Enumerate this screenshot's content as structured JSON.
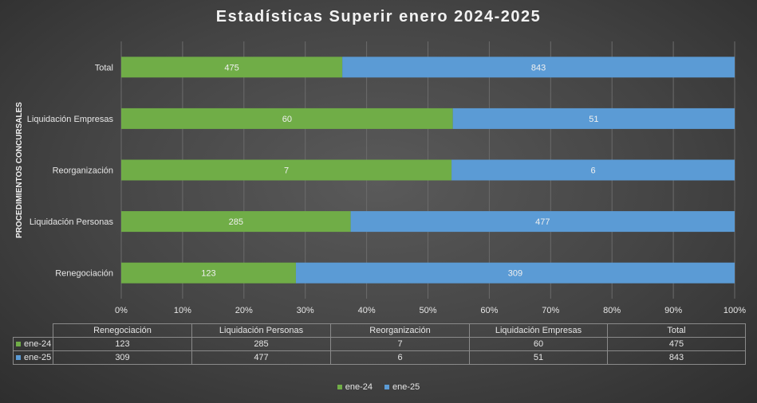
{
  "chart_data": {
    "type": "bar",
    "orientation": "horizontal",
    "stacking": "percent",
    "title": "Estadísticas  Superir  enero 2024-2025",
    "ylabel": "PROCEDIMIENTOS CONCURSALES",
    "categories": [
      "Renegociación",
      "Liquidación Personas",
      "Reorganización",
      "Liquidación Empresas",
      "Total"
    ],
    "series": [
      {
        "name": "ene-24",
        "color": "#70ad47",
        "values": [
          123,
          285,
          7,
          60,
          475
        ]
      },
      {
        "name": "ene-25",
        "color": "#5b9bd5",
        "values": [
          309,
          477,
          6,
          51,
          843
        ]
      }
    ],
    "x_ticks": [
      "0%",
      "10%",
      "20%",
      "30%",
      "40%",
      "50%",
      "60%",
      "70%",
      "80%",
      "90%",
      "100%"
    ],
    "xlim": [
      0,
      100
    ],
    "grid": true,
    "legend": "bottom",
    "data_table": true
  }
}
